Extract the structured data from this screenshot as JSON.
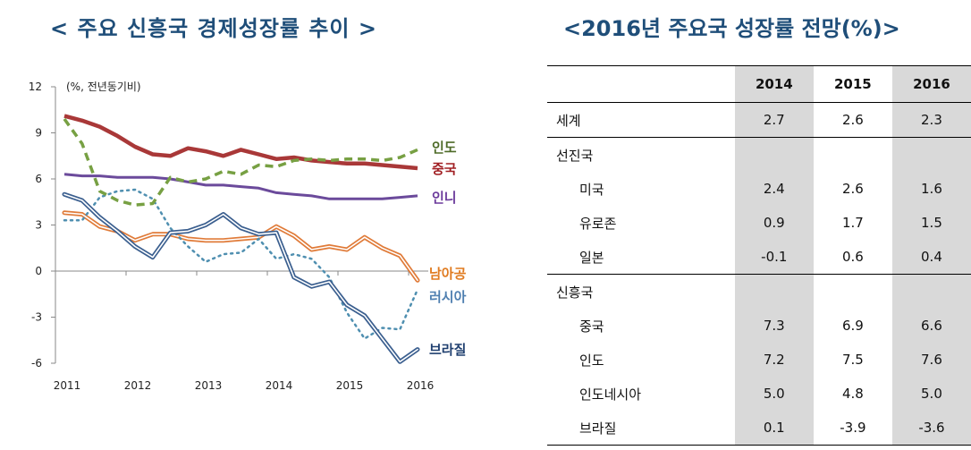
{
  "titles": {
    "left": "< 주요 신흥국 경제성장률 추이 >",
    "right": "<2016년 주요국 성장률 전망(%)>"
  },
  "chart_data": {
    "type": "line",
    "title": "< 주요 신흥국 경제성장률 추이 >",
    "unit_note": "(%, 전년동기비)",
    "xlabel": "",
    "ylabel": "",
    "ylim": [
      -6,
      12
    ],
    "yticks": [
      "12",
      "9",
      "6",
      "3",
      "0",
      "-3",
      "-6"
    ],
    "ytick_values": [
      12,
      9,
      6,
      3,
      0,
      -3,
      -6
    ],
    "xtick_labels": [
      "2011",
      "2012",
      "2013",
      "2014",
      "2015",
      "2016"
    ],
    "x": [
      "2011Q1",
      "2011Q2",
      "2011Q3",
      "2011Q4",
      "2012Q1",
      "2012Q2",
      "2012Q3",
      "2012Q4",
      "2013Q1",
      "2013Q2",
      "2013Q3",
      "2013Q4",
      "2014Q1",
      "2014Q2",
      "2014Q3",
      "2014Q4",
      "2015Q1",
      "2015Q2",
      "2015Q3",
      "2015Q4",
      "2016Q1"
    ],
    "grid": false,
    "legend": "inline-right",
    "series": [
      {
        "name": "인도",
        "color": "#77a043",
        "style": "dashed",
        "values": [
          9.9,
          8.3,
          5.2,
          4.6,
          4.3,
          4.4,
          6.1,
          5.8,
          6.0,
          6.5,
          6.3,
          6.9,
          6.8,
          7.2,
          7.3,
          7.2,
          7.3,
          7.3,
          7.2,
          7.4,
          7.9
        ]
      },
      {
        "name": "중국",
        "color": "#a93838",
        "style": "solid-thick",
        "values": [
          10.1,
          9.8,
          9.4,
          8.8,
          8.1,
          7.6,
          7.5,
          8.0,
          7.8,
          7.5,
          7.9,
          7.6,
          7.3,
          7.4,
          7.2,
          7.1,
          7.0,
          7.0,
          6.9,
          6.8,
          6.7
        ]
      },
      {
        "name": "인니",
        "color": "#6b4a9b",
        "style": "solid",
        "values": [
          6.3,
          6.2,
          6.2,
          6.1,
          6.1,
          6.1,
          6.0,
          5.8,
          5.6,
          5.6,
          5.5,
          5.4,
          5.1,
          5.0,
          4.9,
          4.7,
          4.7,
          4.7,
          4.7,
          4.8,
          4.9
        ]
      },
      {
        "name": "남아공",
        "color": "#e07b39",
        "style": "double",
        "values": [
          3.8,
          3.7,
          2.9,
          2.6,
          2.0,
          2.4,
          2.4,
          2.1,
          2.0,
          2.0,
          2.1,
          2.2,
          2.9,
          2.3,
          1.4,
          1.6,
          1.4,
          2.2,
          1.5,
          1.0,
          -0.6
        ]
      },
      {
        "name": "러시아",
        "color": "#4f8fb0",
        "style": "dotted",
        "values": [
          3.3,
          3.3,
          4.8,
          5.2,
          5.3,
          4.7,
          2.8,
          1.6,
          0.6,
          1.1,
          1.2,
          2.1,
          0.8,
          1.1,
          0.8,
          -0.4,
          -2.7,
          -4.4,
          -3.7,
          -3.8,
          -1.2
        ]
      },
      {
        "name": "브라질",
        "color": "#3b5f8f",
        "style": "double",
        "values": [
          5.0,
          4.6,
          3.5,
          2.6,
          1.6,
          0.9,
          2.5,
          2.6,
          3.0,
          3.7,
          2.8,
          2.4,
          2.5,
          -0.4,
          -1.0,
          -0.7,
          -2.2,
          -2.9,
          -4.4,
          -5.9,
          -5.1
        ]
      }
    ],
    "label_colors": {
      "인도": "#4e6b28",
      "중국": "#a01e22",
      "인니": "#6b3a9b",
      "남아공": "#e07b20",
      "러시아": "#4f7fb0",
      "브라질": "#1f3f6f"
    }
  },
  "table": {
    "header": [
      "",
      "2014",
      "2015",
      "2016"
    ],
    "rows": [
      {
        "label": "세계",
        "values": [
          "2.7",
          "2.6",
          "2.3"
        ]
      },
      {
        "label": "선진국",
        "values": [
          "",
          "",
          ""
        ]
      },
      {
        "label": "미국",
        "values": [
          "2.4",
          "2.6",
          "1.6"
        ]
      },
      {
        "label": "유로존",
        "values": [
          "0.9",
          "1.7",
          "1.5"
        ]
      },
      {
        "label": "일본",
        "values": [
          "-0.1",
          "0.6",
          "0.4"
        ]
      },
      {
        "label": "신흥국",
        "values": [
          "",
          "",
          ""
        ]
      },
      {
        "label": "중국",
        "values": [
          "7.3",
          "6.9",
          "6.6"
        ]
      },
      {
        "label": "인도",
        "values": [
          "7.2",
          "7.5",
          "7.6"
        ]
      },
      {
        "label": "인도네시아",
        "values": [
          "5.0",
          "4.8",
          "5.0"
        ]
      },
      {
        "label": "브라질",
        "values": [
          "0.1",
          "-3.9",
          "-3.6"
        ]
      }
    ]
  }
}
